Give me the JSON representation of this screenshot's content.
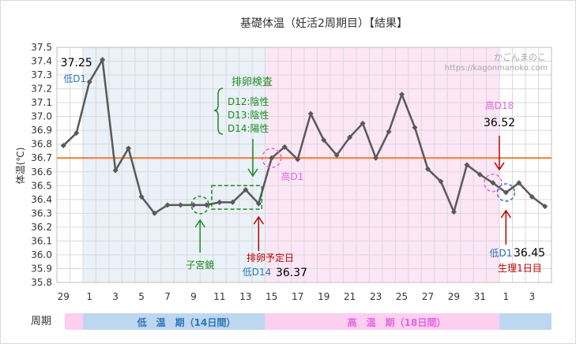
{
  "title": "基礎体温（妊活2周期目）【結果】",
  "watermark": {
    "name": "かごんまのこ",
    "url": "https://kagonmanoko.com"
  },
  "chart_data": {
    "type": "line",
    "ylabel": "体温(℃)",
    "ylim": [
      35.8,
      37.5
    ],
    "ytick_step": 0.1,
    "yticks": [
      "37.5",
      "37.4",
      "37.3",
      "37.2",
      "37.1",
      "37.0",
      "36.9",
      "36.8",
      "36.7",
      "36.6",
      "36.5",
      "36.4",
      "36.3",
      "36.2",
      "36.1",
      "36.0",
      "35.9",
      "35.8"
    ],
    "xticks": [
      "29",
      "1",
      "3",
      "5",
      "7",
      "9",
      "11",
      "13",
      "15",
      "17",
      "19",
      "21",
      "23",
      "25",
      "27",
      "29",
      "31",
      "1",
      "3"
    ],
    "grid": true,
    "threshold": 36.7,
    "series": [
      {
        "values": [
          36.79,
          36.88,
          37.25,
          37.41,
          36.61,
          36.77,
          36.42,
          36.3,
          36.36,
          36.36,
          36.36,
          36.36,
          36.38,
          36.38,
          36.47,
          36.37,
          36.7,
          36.78,
          36.69,
          37.02,
          36.83,
          36.72,
          36.85,
          36.95,
          36.7,
          36.89,
          37.16,
          36.92,
          36.62,
          36.53,
          36.31,
          36.65,
          36.58,
          36.52,
          36.45,
          36.52,
          36.42,
          36.35
        ]
      }
    ],
    "annotations": {
      "start_value": "37.25",
      "low_d1": "低D1",
      "inspection_title": "排卵検査",
      "inspection_lines": [
        "D12:陰性",
        "D13:陰性",
        "D14:陽性"
      ],
      "high_d1": "高D1",
      "high_d18": "高D18",
      "high_d18_value": "36.52",
      "uterine_mirror": "子宮鏡",
      "ovulation_expected": "排卵予定日",
      "low_d14": "低D14",
      "ovulation_value": "36.37",
      "next_low_d1": "低D1",
      "next_low_value": "36.45",
      "period_day1": "生理1日目"
    },
    "period_bar": {
      "label": "周期",
      "low_label": "低　温　期（14日間）",
      "high_label": "高　温　期（18日間）"
    },
    "colors": {
      "line": "#595959",
      "threshold": "#ed7d31",
      "low_bg": "#eaf1f8",
      "high_bg": "#fde6f6",
      "low_bar": "#bdd7ee",
      "high_bar": "#fccef0",
      "blue_text": "#2e75b6",
      "pink_text": "#e066e0",
      "green": "#1f8a1f",
      "red": "#c00000"
    }
  }
}
